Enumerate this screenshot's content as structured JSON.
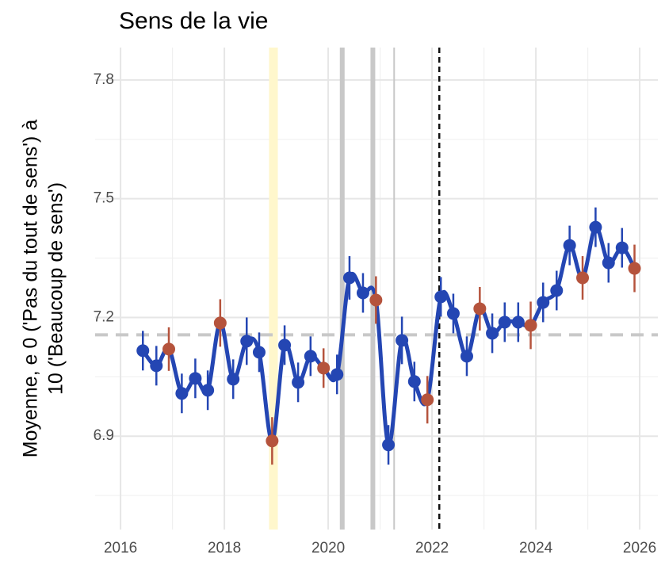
{
  "chart_data": {
    "type": "line",
    "title": "Sens de la vie",
    "ylabel": [
      "Moyenne, e 0 ('Pas du tout de sens') à",
      "10 ('Beaucoup de sens')"
    ],
    "xlim": [
      2015.51,
      2026.35
    ],
    "ylim": [
      6.664,
      7.882
    ],
    "xticks": [
      2016,
      2018,
      2020,
      2022,
      2024,
      2026
    ],
    "yticks": [
      6.9,
      7.2,
      7.5,
      7.8
    ],
    "grid": true,
    "x": [
      2016.43,
      2016.69,
      2016.93,
      2017.18,
      2017.44,
      2017.68,
      2017.92,
      2018.17,
      2018.43,
      2018.67,
      2018.92,
      2019.16,
      2019.42,
      2019.66,
      2019.91,
      2020.17,
      2020.41,
      2020.67,
      2020.92,
      2021.16,
      2021.42,
      2021.66,
      2021.91,
      2022.17,
      2022.41,
      2022.67,
      2022.92,
      2023.16,
      2023.4,
      2023.66,
      2023.9,
      2024.14,
      2024.4,
      2024.65,
      2024.9,
      2025.15,
      2025.4,
      2025.66,
      2025.9
    ],
    "series": [
      {
        "color": "#2446b3",
        "values": [
          7.116,
          7.078,
          7.12,
          7.008,
          7.046,
          7.016,
          7.186,
          7.044,
          7.14,
          7.112,
          6.888,
          7.13,
          7.036,
          7.102,
          7.072,
          7.056,
          7.3,
          7.262,
          7.244,
          6.878,
          7.142,
          7.038,
          6.992,
          7.252,
          7.21,
          7.102,
          7.222,
          7.16,
          7.188,
          7.188,
          7.18,
          7.238,
          7.268,
          7.382,
          7.3,
          7.428,
          7.338,
          7.376,
          7.324
        ],
        "errors": [
          0.05,
          0.05,
          0.055,
          0.05,
          0.05,
          0.05,
          0.06,
          0.05,
          0.06,
          0.05,
          0.06,
          0.05,
          0.05,
          0.05,
          0.05,
          0.05,
          0.055,
          0.05,
          0.06,
          0.05,
          0.06,
          0.05,
          0.06,
          0.05,
          0.05,
          0.05,
          0.055,
          0.05,
          0.05,
          0.05,
          0.06,
          0.05,
          0.05,
          0.05,
          0.055,
          0.05,
          0.05,
          0.05,
          0.06
        ],
        "point_colors": [
          "#2446b3",
          "#2446b3",
          "#b5533c",
          "#2446b3",
          "#2446b3",
          "#2446b3",
          "#b5533c",
          "#2446b3",
          "#2446b3",
          "#2446b3",
          "#b5533c",
          "#2446b3",
          "#2446b3",
          "#2446b3",
          "#b5533c",
          "#2446b3",
          "#2446b3",
          "#2446b3",
          "#b5533c",
          "#2446b3",
          "#2446b3",
          "#2446b3",
          "#b5533c",
          "#2446b3",
          "#2446b3",
          "#2446b3",
          "#b5533c",
          "#2446b3",
          "#2446b3",
          "#2446b3",
          "#b5533c",
          "#2446b3",
          "#2446b3",
          "#2446b3",
          "#b5533c",
          "#2446b3",
          "#2446b3",
          "#2446b3",
          "#b5533c"
        ]
      }
    ],
    "hline": {
      "value": 7.156,
      "color": "#c8c8c8"
    },
    "band": {
      "range": [
        2018.86,
        2019.03
      ],
      "color": "#fff7cc"
    },
    "vlines": [
      {
        "value": 2020.27,
        "color": "#c8c8c8",
        "width": 6
      },
      {
        "value": 2020.86,
        "color": "#c8c8c8",
        "width": 6
      },
      {
        "value": 2021.27,
        "color": "#c8c8c8",
        "width": 2
      }
    ],
    "dashed_vline": {
      "value": 2022.14,
      "color": "#111111"
    }
  }
}
